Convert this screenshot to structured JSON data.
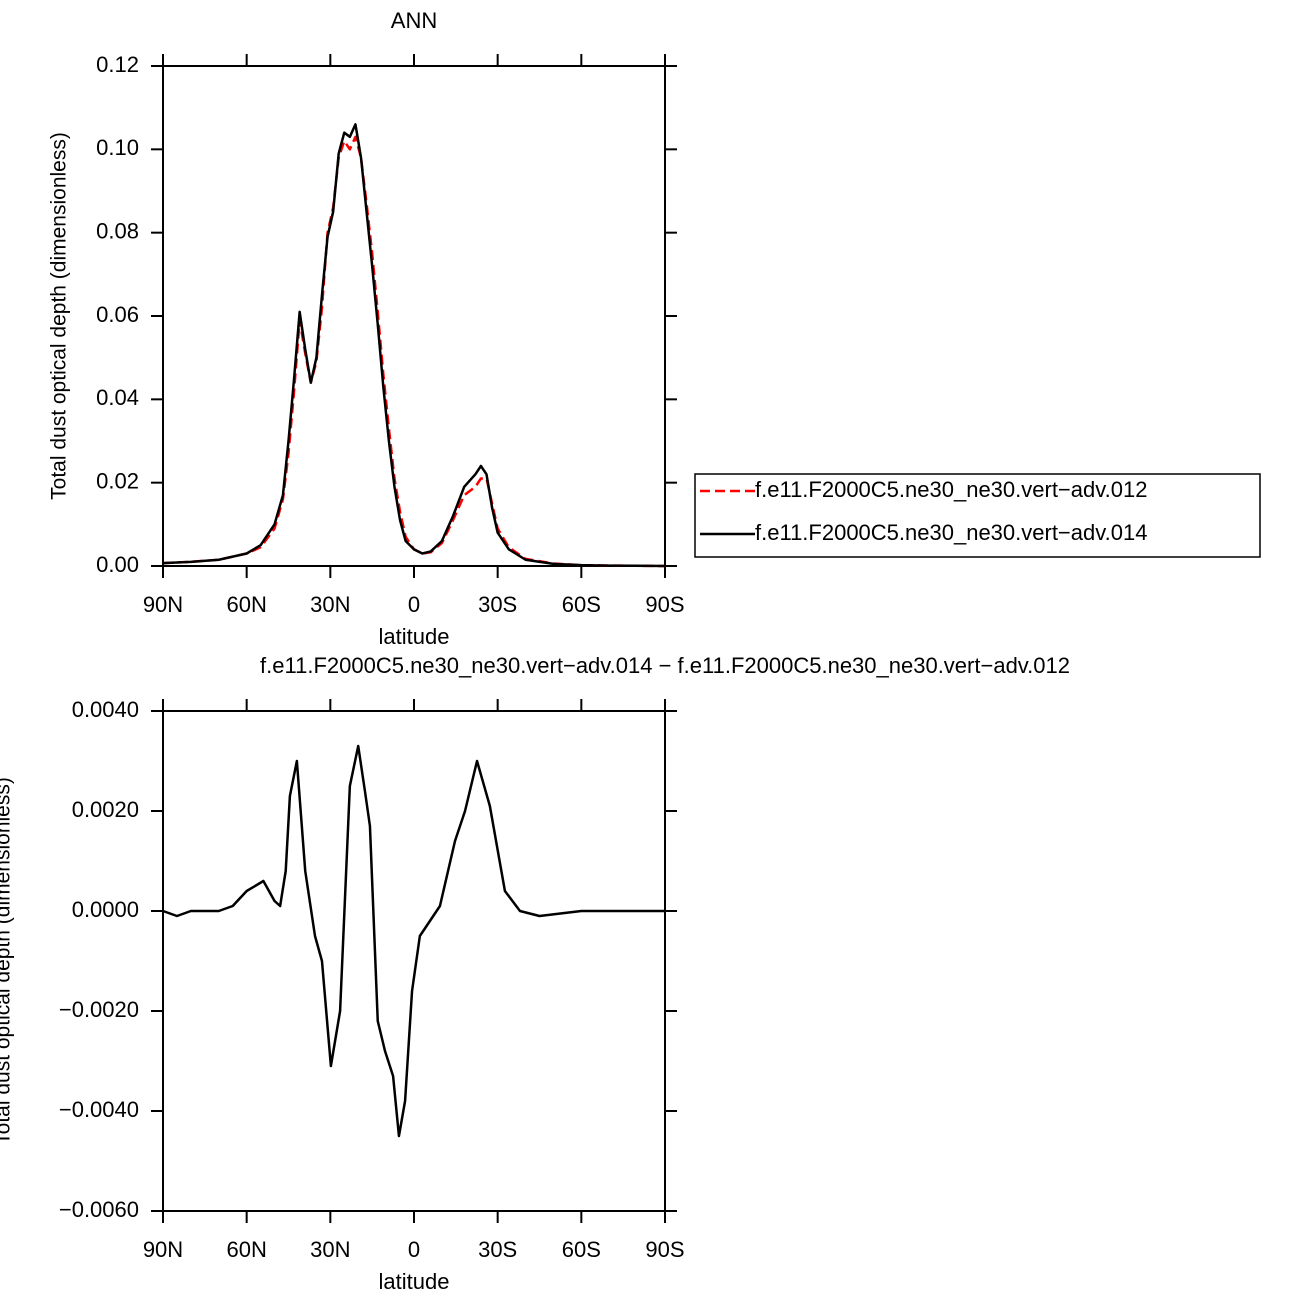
{
  "chart_data": [
    {
      "type": "line",
      "title": "ANN",
      "x_label": "latitude",
      "y_label": "Total dust optical depth (dimensionless)",
      "x": [
        90,
        80,
        70,
        60,
        55,
        50,
        47,
        45,
        43,
        41,
        39,
        37,
        35,
        33,
        31,
        29,
        27,
        25,
        23,
        21,
        19,
        17,
        15,
        13,
        11,
        9,
        7,
        5,
        3,
        0,
        -3,
        -6,
        -10,
        -14,
        -18,
        -22,
        -24,
        -26,
        -28,
        -30,
        -34,
        -40,
        -50,
        -60,
        -70,
        -90
      ],
      "series": [
        {
          "name": "f.e11.F2000C5.ne30_ne30.vert−adv.012",
          "color": "#ff0000",
          "dashed": true,
          "values": [
            0.0007,
            0.001,
            0.0015,
            0.003,
            0.0045,
            0.009,
            0.016,
            0.027,
            0.042,
            0.059,
            0.051,
            0.044,
            0.049,
            0.062,
            0.08,
            0.086,
            0.098,
            0.102,
            0.1,
            0.103,
            0.098,
            0.087,
            0.075,
            0.061,
            0.046,
            0.033,
            0.021,
            0.013,
            0.007,
            0.004,
            0.003,
            0.0033,
            0.0055,
            0.011,
            0.017,
            0.019,
            0.021,
            0.021,
            0.015,
            0.009,
            0.0045,
            0.0017,
            0.0006,
            0.0002,
            0.0001,
            0
          ]
        },
        {
          "name": "f.e11.F2000C5.ne30_ne30.vert−adv.014",
          "color": "#000000",
          "dashed": false,
          "values": [
            0.0007,
            0.001,
            0.0015,
            0.003,
            0.005,
            0.01,
            0.017,
            0.03,
            0.045,
            0.061,
            0.052,
            0.044,
            0.05,
            0.065,
            0.079,
            0.085,
            0.099,
            0.104,
            0.103,
            0.106,
            0.098,
            0.085,
            0.072,
            0.058,
            0.043,
            0.03,
            0.019,
            0.011,
            0.006,
            0.004,
            0.003,
            0.0035,
            0.006,
            0.012,
            0.019,
            0.022,
            0.024,
            0.022,
            0.014,
            0.008,
            0.004,
            0.0015,
            0.0005,
            0.0002,
            0.0001,
            0
          ]
        }
      ],
      "xlim": [
        90,
        -90
      ],
      "xticks": [
        {
          "value": 90,
          "label": "90N"
        },
        {
          "value": 60,
          "label": "60N"
        },
        {
          "value": 30,
          "label": "30N"
        },
        0,
        {
          "value": -30,
          "label": "30S"
        },
        {
          "value": -60,
          "label": "60S"
        },
        {
          "value": -90,
          "label": "90S"
        }
      ],
      "ylim": [
        0,
        0.12
      ],
      "yticks": [
        {
          "value": 0,
          "label": "0.00"
        },
        {
          "value": 0.02,
          "label": "0.02"
        },
        {
          "value": 0.04,
          "label": "0.04"
        },
        {
          "value": 0.06,
          "label": "0.06"
        },
        {
          "value": 0.08,
          "label": "0.08"
        },
        {
          "value": 0.1,
          "label": "0.10"
        },
        {
          "value": 0.12,
          "label": "0.12"
        }
      ],
      "legend": "right"
    },
    {
      "type": "line",
      "title": "f.e11.F2000C5.ne30_ne30.vert−adv.014 − f.e11.F2000C5.ne30_ne30.vert−adv.012",
      "x_label": "latitude",
      "y_label": "Total dust optical depth (dimensionless)",
      "x": [
        90,
        85,
        80,
        75,
        70,
        65,
        60,
        54,
        50,
        48,
        46,
        44.5,
        42,
        39,
        35.5,
        33,
        29.8,
        26.5,
        23,
        20,
        17.6,
        15.8,
        13,
        10.4,
        7.5,
        5.4,
        3.2,
        0.7,
        -2.1,
        -9.3,
        -14.7,
        -18.3,
        -22.6,
        -27.2,
        -32.6,
        -38,
        -45,
        -60,
        -90
      ],
      "series": [
        {
          "color": "#000000",
          "dashed": false,
          "values": [
            0,
            -0.0001,
            0,
            0,
            0,
            0.0001,
            0.0004,
            0.0006,
            0.0002,
            0.0001,
            0.0008,
            0.0023,
            0.003,
            0.0008,
            -0.0005,
            -0.001,
            -0.0031,
            -0.002,
            0.0025,
            0.0033,
            0.0024,
            0.0017,
            -0.0022,
            -0.0028,
            -0.0033,
            -0.0045,
            -0.0038,
            -0.0016,
            -0.0005,
            0.0001,
            0.0014,
            0.002,
            0.003,
            0.0021,
            0.0004,
            0,
            -0.0001,
            0,
            0
          ]
        }
      ],
      "xlim": [
        90,
        -90
      ],
      "xticks": [
        {
          "value": 90,
          "label": "90N"
        },
        {
          "value": 60,
          "label": "60N"
        },
        {
          "value": 30,
          "label": "30N"
        },
        0,
        {
          "value": -30,
          "label": "30S"
        },
        {
          "value": -60,
          "label": "60S"
        },
        {
          "value": -90,
          "label": "90S"
        }
      ],
      "ylim": [
        -0.006,
        0.004
      ],
      "yticks": [
        {
          "value": -0.006,
          "label": "−0.0060"
        },
        {
          "value": -0.004,
          "label": "−0.0040"
        },
        {
          "value": -0.002,
          "label": "−0.0020"
        },
        {
          "value": 0,
          "label": "0.0000"
        },
        {
          "value": 0.002,
          "label": "0.0020"
        },
        {
          "value": 0.004,
          "label": "0.0040"
        }
      ]
    }
  ]
}
